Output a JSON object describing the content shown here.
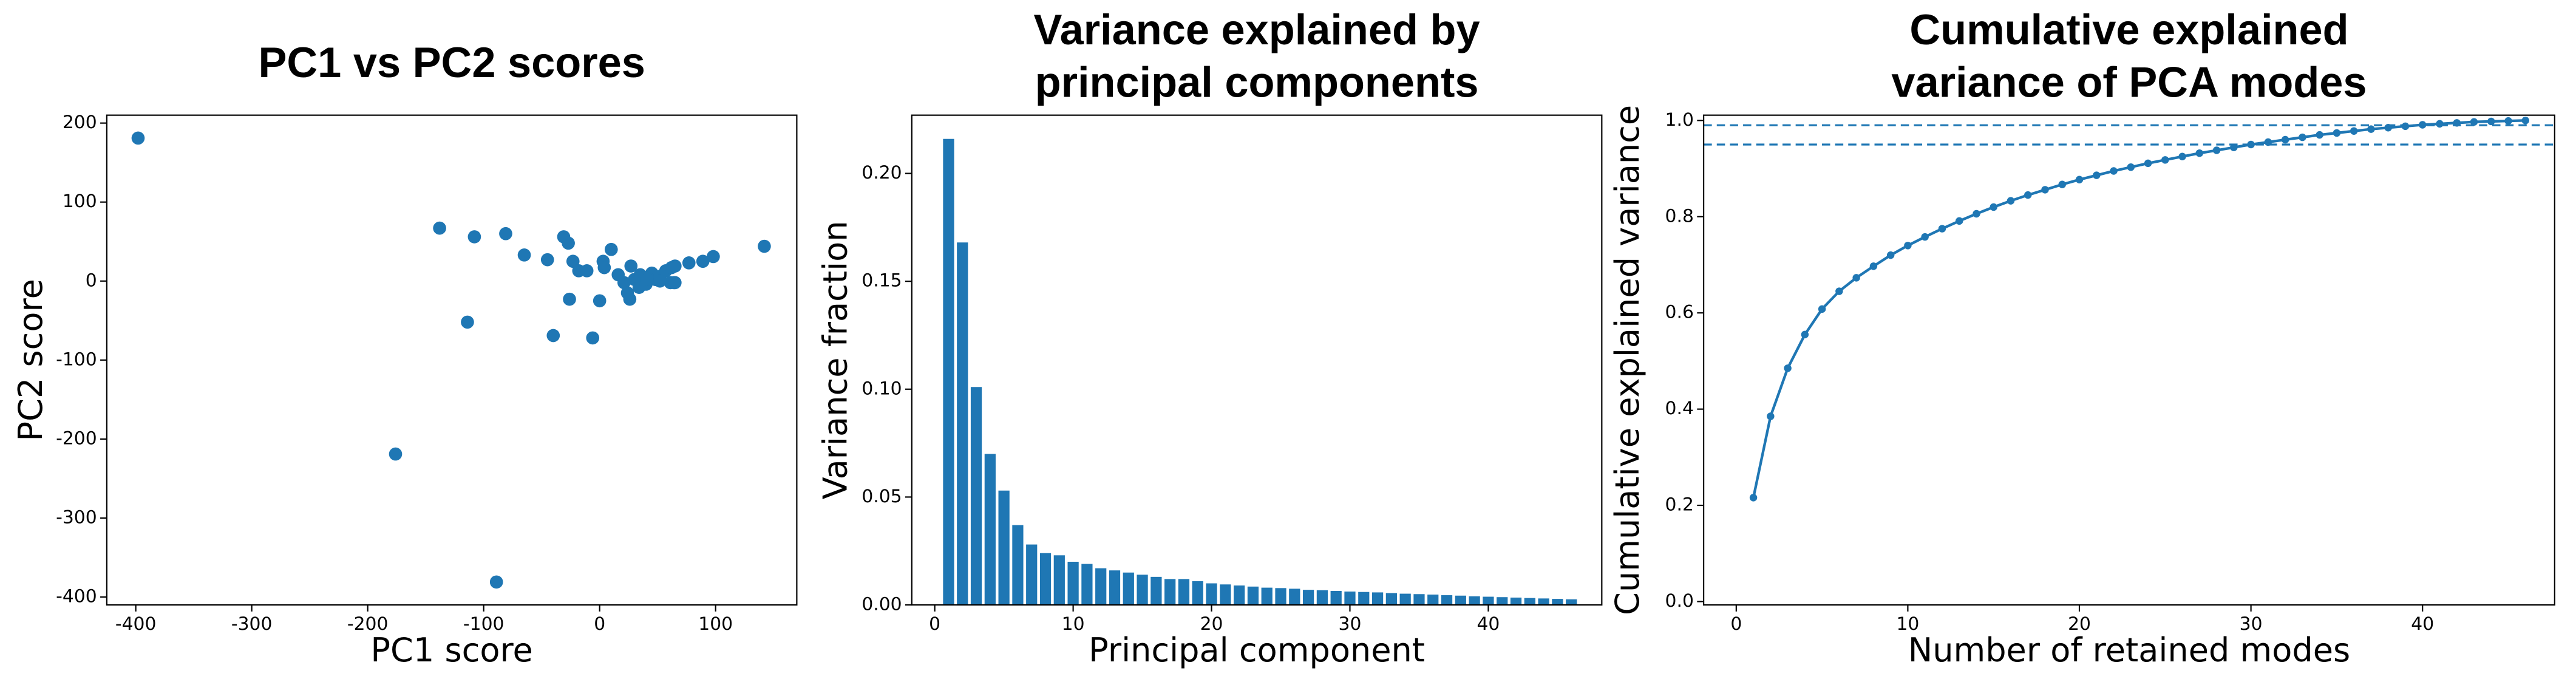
{
  "chart_data": [
    {
      "type": "scatter",
      "title": "PC1 vs PC2 scores",
      "xlabel": "PC1 score",
      "ylabel": "PC2 score",
      "color": "#1f77b4",
      "x": [
        -398,
        -176,
        -89,
        -138,
        -108,
        -81,
        -114,
        -65,
        -45,
        -31,
        -27,
        -23,
        -26,
        -40,
        -18,
        -11,
        -6,
        3,
        4,
        10,
        0,
        16,
        21,
        24,
        27,
        30,
        26,
        34,
        35,
        40,
        45,
        48,
        52,
        57,
        62,
        61,
        65,
        64,
        77,
        89,
        98,
        142,
        52,
        41,
        65
      ],
      "y": [
        181,
        -219,
        -381,
        67,
        56,
        60,
        -52,
        33,
        27,
        56,
        48,
        25,
        -23,
        -69,
        13,
        13,
        -72,
        25,
        17,
        40,
        -25,
        8,
        -2,
        -15,
        19,
        2,
        -23,
        -8,
        8,
        -4,
        10,
        2,
        6,
        13,
        17,
        -2,
        19,
        -2,
        23,
        25,
        31,
        44,
        0,
        2,
        -2
      ],
      "xlim": [
        -425,
        170
      ],
      "ylim": [
        -410,
        210
      ],
      "xticks": [
        -400,
        -300,
        -200,
        -100,
        0,
        100
      ],
      "yticks": [
        -400,
        -300,
        -200,
        -100,
        0,
        100,
        200
      ]
    },
    {
      "type": "bar",
      "title": [
        "Variance explained by",
        "principal components"
      ],
      "xlabel": "Principal component",
      "ylabel": "Variance fraction",
      "color": "#1f77b4",
      "x": [
        1,
        2,
        3,
        4,
        5,
        6,
        7,
        8,
        9,
        10,
        11,
        12,
        13,
        14,
        15,
        16,
        17,
        18,
        19,
        20,
        21,
        22,
        23,
        24,
        25,
        26,
        27,
        28,
        29,
        30,
        31,
        32,
        33,
        34,
        35,
        36,
        37,
        38,
        39,
        40,
        41,
        42,
        43,
        44,
        45,
        46
      ],
      "values": [
        0.216,
        0.168,
        0.101,
        0.07,
        0.053,
        0.037,
        0.028,
        0.024,
        0.023,
        0.02,
        0.019,
        0.017,
        0.016,
        0.015,
        0.014,
        0.013,
        0.012,
        0.012,
        0.011,
        0.01,
        0.0095,
        0.009,
        0.0085,
        0.008,
        0.0078,
        0.0075,
        0.007,
        0.0068,
        0.0065,
        0.0062,
        0.006,
        0.0058,
        0.0055,
        0.0052,
        0.005,
        0.0048,
        0.0045,
        0.0043,
        0.004,
        0.0038,
        0.0036,
        0.0034,
        0.0032,
        0.003,
        0.0028,
        0.0026
      ],
      "xlim": [
        -1.66,
        48.2
      ],
      "ylim": [
        0,
        0.227
      ],
      "xticks": [
        0,
        10,
        20,
        30,
        40
      ],
      "yticks": [
        {
          "value": 0,
          "label": "0.00"
        },
        {
          "value": 0.05,
          "label": "0.05"
        },
        {
          "value": 0.1,
          "label": "0.10"
        },
        {
          "value": 0.15,
          "label": "0.15"
        },
        {
          "value": 0.2,
          "label": "0.20"
        }
      ]
    },
    {
      "type": "line",
      "title": [
        "Cumulative explained",
        "variance of PCA modes"
      ],
      "xlabel": "Number of retained modes",
      "ylabel": "Cumulative explained variance",
      "color": "#1f77b4",
      "x": [
        1,
        2,
        3,
        4,
        5,
        6,
        7,
        8,
        9,
        10,
        11,
        12,
        13,
        14,
        15,
        16,
        17,
        18,
        19,
        20,
        21,
        22,
        23,
        24,
        25,
        26,
        27,
        28,
        29,
        30,
        31,
        32,
        33,
        34,
        35,
        36,
        37,
        38,
        39,
        40,
        41,
        42,
        43,
        44,
        45,
        46
      ],
      "values": [
        0.216,
        0.385,
        0.485,
        0.555,
        0.608,
        0.645,
        0.673,
        0.697,
        0.72,
        0.74,
        0.758,
        0.775,
        0.791,
        0.806,
        0.82,
        0.833,
        0.845,
        0.856,
        0.867,
        0.877,
        0.886,
        0.895,
        0.903,
        0.911,
        0.918,
        0.925,
        0.932,
        0.938,
        0.944,
        0.95,
        0.955,
        0.96,
        0.965,
        0.97,
        0.974,
        0.978,
        0.982,
        0.985,
        0.988,
        0.991,
        0.993,
        0.995,
        0.997,
        0.998,
        0.999,
        1.0
      ],
      "hlines": [
        0.95,
        0.99
      ],
      "xlim": [
        -1.9,
        47.7
      ],
      "ylim": [
        -0.007,
        1.011
      ],
      "xticks": [
        0,
        10,
        20,
        30,
        40
      ],
      "yticks": [
        {
          "value": 0,
          "label": "0.0"
        },
        {
          "value": 0.2,
          "label": "0.2"
        },
        {
          "value": 0.4,
          "label": "0.4"
        },
        {
          "value": 0.6,
          "label": "0.6"
        },
        {
          "value": 0.8,
          "label": "0.8"
        },
        {
          "value": 1.0,
          "label": "1.0"
        }
      ]
    }
  ]
}
